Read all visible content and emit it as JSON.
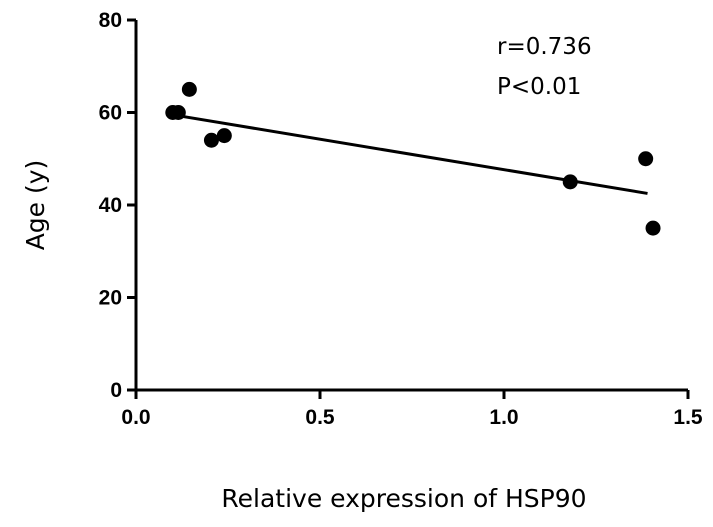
{
  "chart_data": {
    "type": "scatter",
    "title": "",
    "xlabel": "Relative expression of HSP90",
    "ylabel": "Age (y)",
    "xlim": [
      0.0,
      1.5
    ],
    "ylim": [
      0,
      80
    ],
    "x_ticks": [
      0.0,
      0.5,
      1.0,
      1.5
    ],
    "x_tick_labels": [
      "0.0",
      "0.5",
      "1.0",
      "1.5"
    ],
    "y_ticks": [
      0,
      20,
      40,
      60,
      80
    ],
    "y_tick_labels": [
      "0",
      "20",
      "40",
      "60",
      "80"
    ],
    "points": [
      {
        "x": 0.1,
        "y": 60
      },
      {
        "x": 0.115,
        "y": 60
      },
      {
        "x": 0.145,
        "y": 65
      },
      {
        "x": 0.205,
        "y": 54
      },
      {
        "x": 0.24,
        "y": 55
      },
      {
        "x": 1.18,
        "y": 45
      },
      {
        "x": 1.385,
        "y": 50
      },
      {
        "x": 1.405,
        "y": 35
      }
    ],
    "regression_line": {
      "x": [
        0.1,
        1.39
      ],
      "y": [
        59.5,
        42.5
      ]
    },
    "annotations": [
      "r=0.736",
      "P<0.01"
    ],
    "grid": false,
    "legend": "none"
  }
}
